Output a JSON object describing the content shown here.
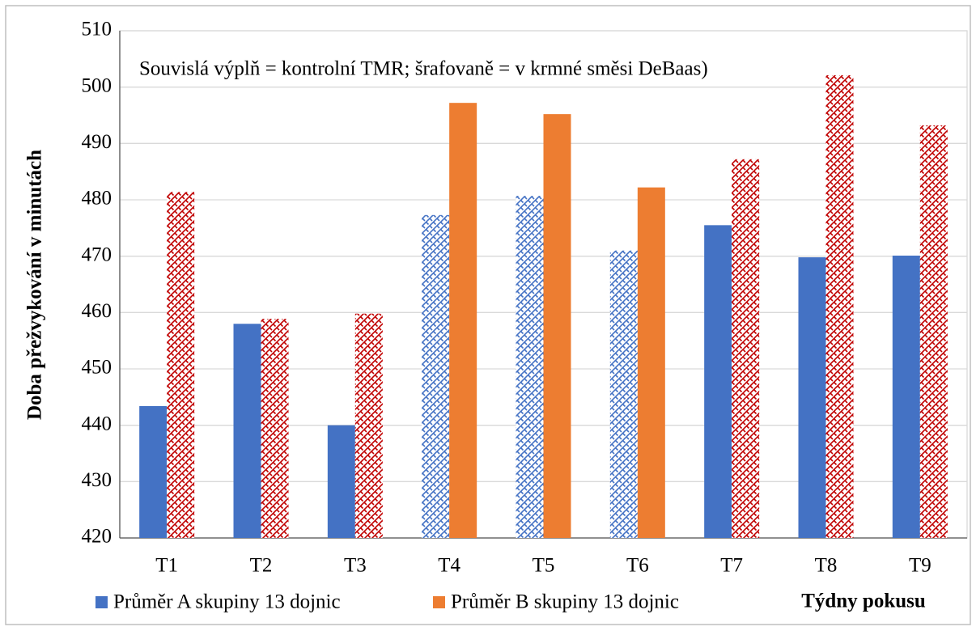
{
  "chart_data": {
    "type": "bar",
    "annotation": "Souvislá výplň = kontrolní TMR; šrafovaně = v krmné směsi DeBaas)",
    "y_label": "Doba přežvykování v minutách",
    "x_label": "Týdny pokusu",
    "categories": [
      "T1",
      "T2",
      "T3",
      "T4",
      "T5",
      "T6",
      "T7",
      "T8",
      "T9"
    ],
    "series": [
      {
        "name": "Průměr A skupiny 13 dojnic",
        "color": "#4472c4",
        "hatch_color": "#4472c4",
        "hatched": [
          false,
          false,
          false,
          true,
          true,
          true,
          false,
          false,
          false
        ],
        "values": [
          443.4,
          458,
          440,
          477.3,
          480.7,
          471,
          475.5,
          469.8,
          470.1
        ]
      },
      {
        "name": "Průměr B skupiny 13 dojnic",
        "color": "#ed7d31",
        "hatch_color": "#c00000",
        "hatched": [
          true,
          true,
          true,
          false,
          false,
          false,
          true,
          true,
          true
        ],
        "values": [
          481.4,
          458.9,
          459.8,
          497.2,
          495.2,
          482.2,
          487.2,
          502.1,
          493.2
        ]
      }
    ],
    "ylim": [
      420,
      510
    ],
    "yticks": [
      420,
      430,
      440,
      450,
      460,
      470,
      480,
      490,
      500,
      510
    ],
    "grid": true
  }
}
